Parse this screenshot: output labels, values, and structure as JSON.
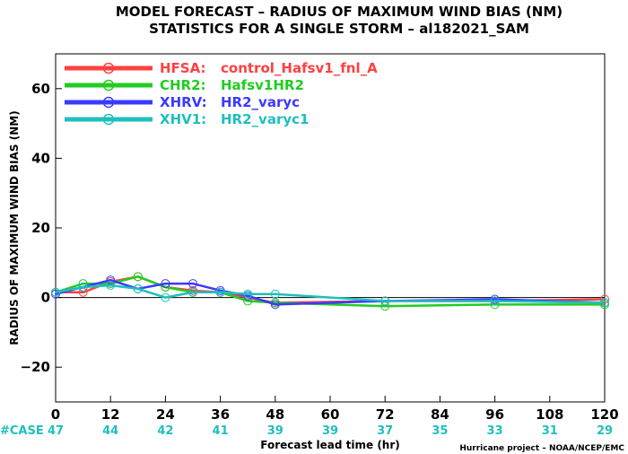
{
  "title_line1": "MODEL FORECAST – RADIUS OF MAXIMUM WIND BIAS (NM)",
  "title_line2": "STATISTICS FOR A SINGLE STORM – al182021_SAM",
  "case_label": "#CASE",
  "credit": "Hurricane project – NOAA/NCEP/EMC",
  "colors": {
    "case": "#1fbfbf",
    "zero_line": "#000000"
  },
  "chart_data": {
    "type": "line",
    "xlabel": "Forecast lead time (hr)",
    "ylabel": "RADIUS OF MAXIMUM WIND BIAS (NM)",
    "xlim": [
      0,
      120
    ],
    "ylim": [
      -30,
      70
    ],
    "x_ticks": [
      "0",
      "12",
      "24",
      "36",
      "48",
      "60",
      "72",
      "84",
      "96",
      "108",
      "120"
    ],
    "y_ticks": [
      "60",
      "40",
      "20",
      "0",
      "−20"
    ],
    "y_tick_values": [
      60,
      40,
      20,
      0,
      -20
    ],
    "case_counts": [
      47,
      44,
      42,
      41,
      39,
      39,
      37,
      35,
      33,
      31,
      29
    ],
    "series": [
      {
        "name": "HFSA:",
        "desc": "control_Hafsv1_fnl_A",
        "color": "#ff4040",
        "x": [
          0,
          6,
          12,
          18,
          24,
          30,
          36,
          42,
          48,
          72,
          96,
          120
        ],
        "y": [
          1.5,
          1.5,
          4.5,
          6,
          3,
          2,
          1.5,
          0,
          -1.5,
          -1,
          -1,
          -0.5
        ]
      },
      {
        "name": "CHR2:",
        "desc": "Hafsv1HR2",
        "color": "#22cc22",
        "x": [
          0,
          6,
          12,
          18,
          24,
          30,
          36,
          42,
          48,
          72,
          96,
          120
        ],
        "y": [
          1.5,
          4,
          4,
          6,
          3,
          1.5,
          1.5,
          -1,
          -1.5,
          -2.5,
          -2,
          -2
        ]
      },
      {
        "name": "XHRV:",
        "desc": "HR2_varyc",
        "color": "#3a3aff",
        "x": [
          0,
          6,
          12,
          18,
          24,
          30,
          36,
          42,
          48,
          72,
          96,
          120
        ],
        "y": [
          1,
          3,
          5,
          2.5,
          4,
          4,
          2,
          0.5,
          -2,
          -1,
          -0.5,
          -1.5
        ]
      },
      {
        "name": "XHV1:",
        "desc": "HR2_varyc1",
        "color": "#1fbfbf",
        "x": [
          0,
          6,
          12,
          18,
          24,
          30,
          36,
          42,
          48,
          72,
          96,
          120
        ],
        "y": [
          1.5,
          3,
          3.5,
          2.5,
          0,
          1.5,
          1.5,
          1,
          1,
          -1,
          -1,
          -1.5
        ]
      }
    ]
  }
}
